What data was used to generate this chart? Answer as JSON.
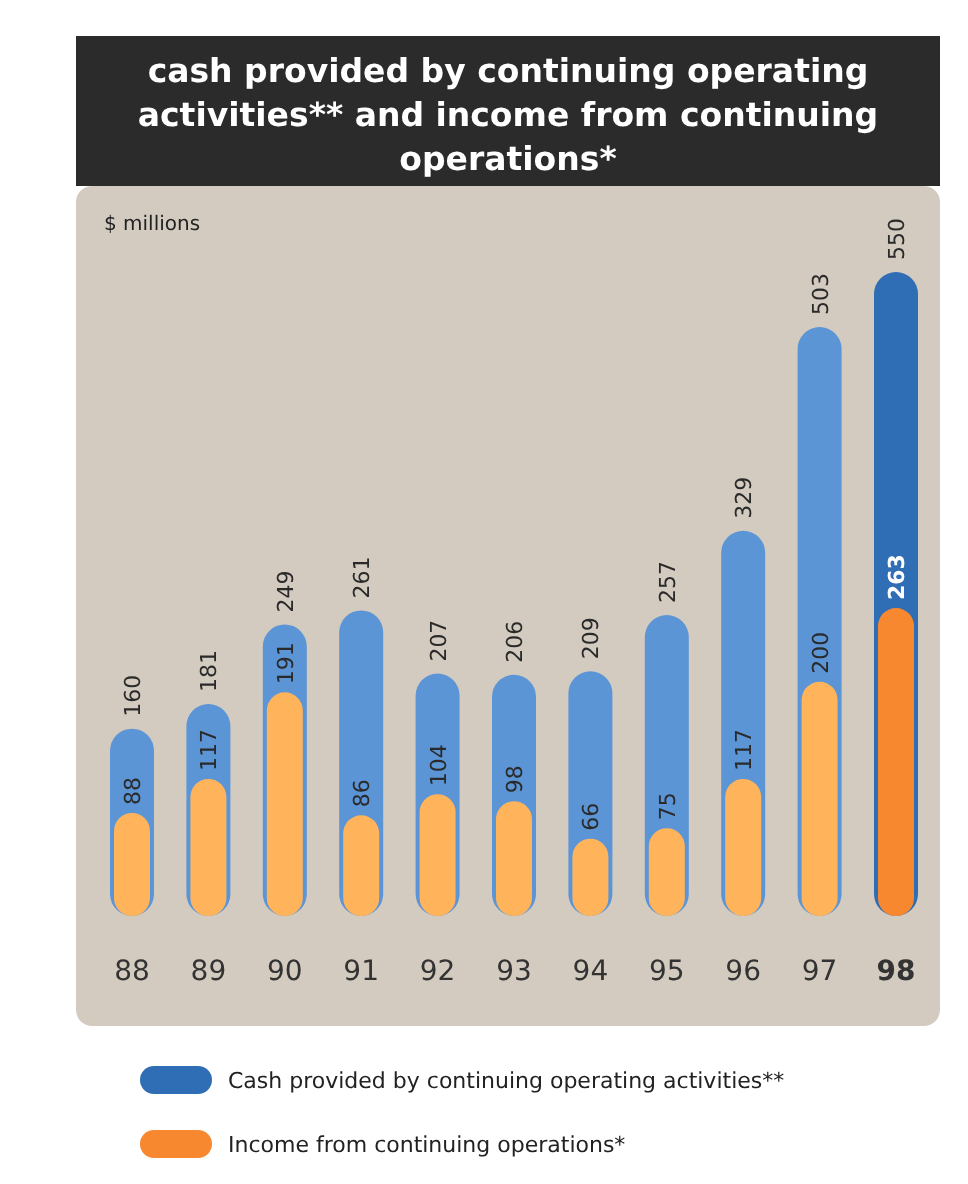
{
  "chart_data": {
    "type": "bar",
    "title": "cash provided by continuing operating activities** and income from continuing operations*",
    "ylabel": "$ millions",
    "categories": [
      "88",
      "89",
      "90",
      "91",
      "92",
      "93",
      "94",
      "95",
      "96",
      "97",
      "98"
    ],
    "series": [
      {
        "name": "Cash provided by continuing operating activities**",
        "color": "#2f6db5",
        "colors": [
          "#5b95d6",
          "#5b95d6",
          "#5b95d6",
          "#5b95d6",
          "#5b95d6",
          "#5b95d6",
          "#5b95d6",
          "#5b95d6",
          "#5b95d6",
          "#5b95d6",
          "#2f6db5"
        ],
        "values": [
          160,
          181,
          249,
          261,
          207,
          206,
          209,
          257,
          329,
          503,
          550
        ]
      },
      {
        "name": "Income from continuing operations*",
        "color": "#f7882f",
        "colors": [
          "#ffb45c",
          "#ffb45c",
          "#ffb45c",
          "#ffb45c",
          "#ffb45c",
          "#ffb45c",
          "#ffb45c",
          "#ffb45c",
          "#ffb45c",
          "#ffb45c",
          "#f7882f"
        ],
        "values": [
          88,
          117,
          191,
          86,
          104,
          98,
          66,
          75,
          117,
          200,
          263
        ]
      }
    ],
    "ylim": [
      0,
      550
    ],
    "data_labels": true,
    "legend": "bottom"
  }
}
